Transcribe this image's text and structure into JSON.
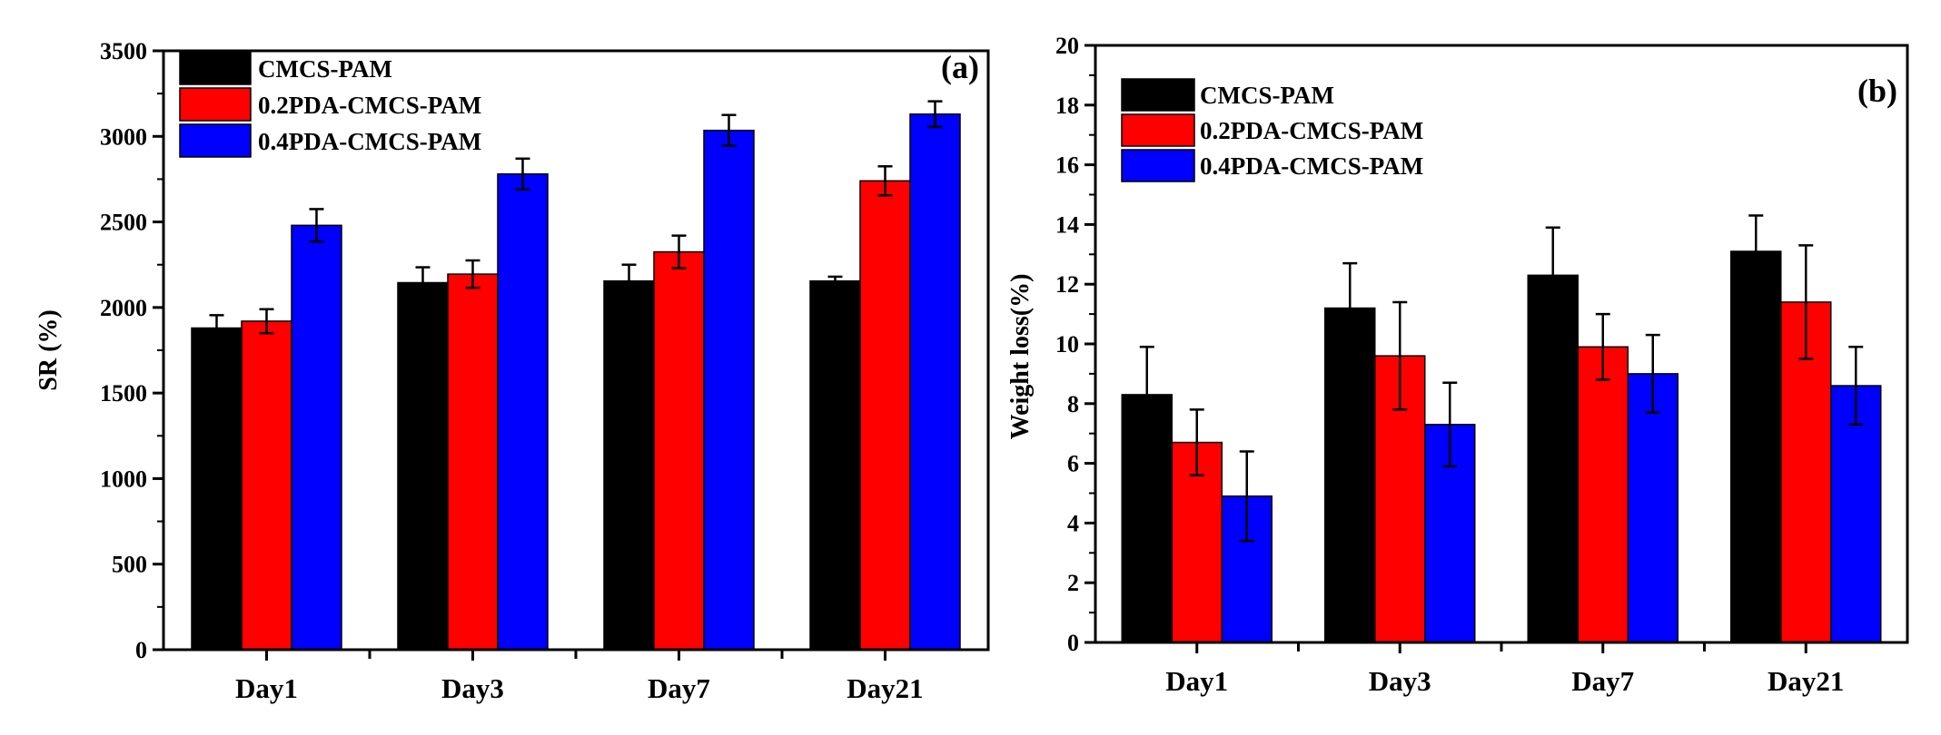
{
  "chart_data": [
    {
      "type": "bar",
      "panel_label": "(a)",
      "categories": [
        "Day1",
        "Day3",
        "Day7",
        "Day21"
      ],
      "ylabel": "SR (%)",
      "xlabel": "",
      "ylim": [
        0,
        3500
      ],
      "yticks": [
        "0",
        "500",
        "1000",
        "1500",
        "2000",
        "2500",
        "3000",
        "3500"
      ],
      "ytick_values": [
        0,
        500,
        1000,
        1500,
        2000,
        2500,
        3000,
        3500
      ],
      "legend_position": "top-left",
      "grid": false,
      "series": [
        {
          "name": "CMCS-PAM",
          "color": "#000000",
          "values": [
            1880,
            2145,
            2155,
            2155
          ],
          "errors": [
            75,
            90,
            95,
            25
          ]
        },
        {
          "name": "0.2PDA-CMCS-PAM",
          "color": "#ff0000",
          "values": [
            1920,
            2195,
            2325,
            2740
          ],
          "errors": [
            70,
            80,
            95,
            85
          ]
        },
        {
          "name": "0.4PDA-CMCS-PAM",
          "color": "#0000ff",
          "values": [
            2480,
            2780,
            3035,
            3130
          ],
          "errors": [
            95,
            90,
            90,
            75
          ]
        }
      ]
    },
    {
      "type": "bar",
      "panel_label": "(b)",
      "categories": [
        "Day1",
        "Day3",
        "Day7",
        "Day21"
      ],
      "ylabel": "Weight loss(%)",
      "xlabel": "",
      "ylim": [
        0,
        20
      ],
      "yticks": [
        "0",
        "2",
        "4",
        "6",
        "8",
        "10",
        "12",
        "14",
        "16",
        "18",
        "20"
      ],
      "ytick_values": [
        0,
        2,
        4,
        6,
        8,
        10,
        12,
        14,
        16,
        18,
        20
      ],
      "legend_position": "top-left",
      "grid": false,
      "series": [
        {
          "name": "CMCS-PAM",
          "color": "#000000",
          "values": [
            8.3,
            11.2,
            12.3,
            13.1
          ],
          "errors": [
            1.6,
            1.5,
            1.6,
            1.2
          ]
        },
        {
          "name": "0.2PDA-CMCS-PAM",
          "color": "#ff0000",
          "values": [
            6.7,
            9.6,
            9.9,
            11.4
          ],
          "errors": [
            1.1,
            1.8,
            1.1,
            1.9
          ]
        },
        {
          "name": "0.4PDA-CMCS-PAM",
          "color": "#0000ff",
          "values": [
            4.9,
            7.3,
            9.0,
            8.6
          ],
          "errors": [
            1.5,
            1.4,
            1.3,
            1.3
          ]
        }
      ]
    }
  ]
}
